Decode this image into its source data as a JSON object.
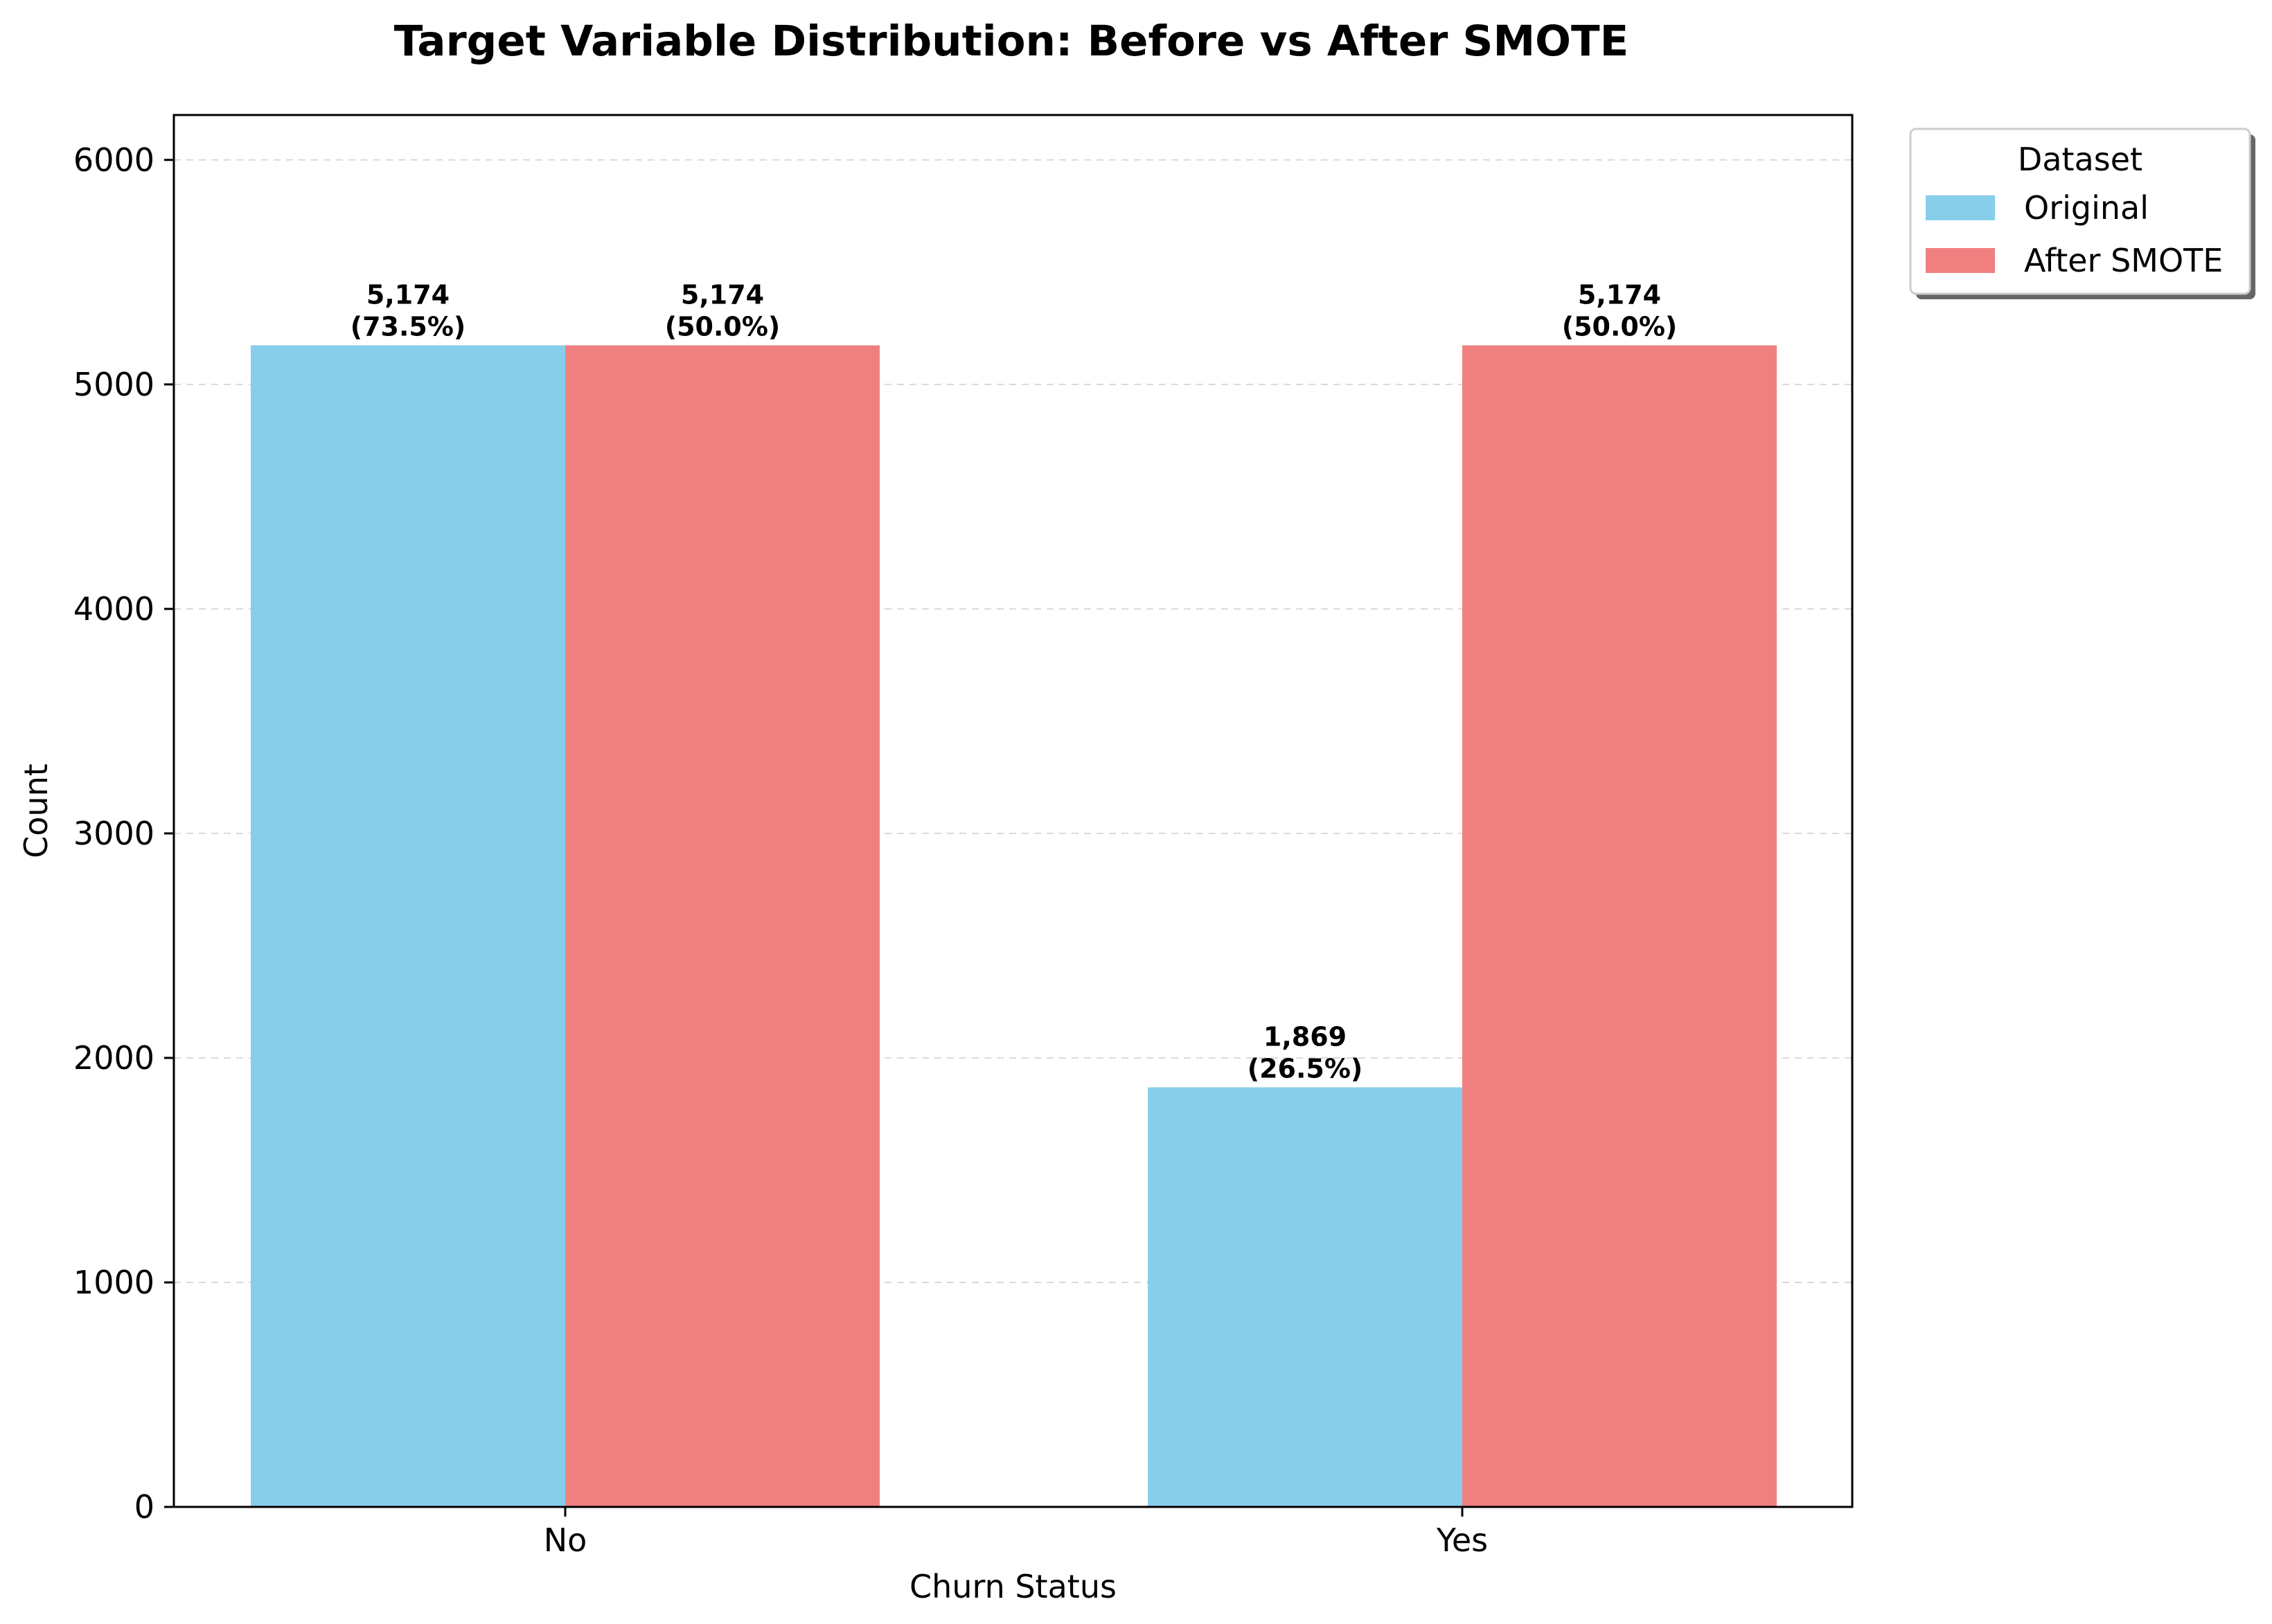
{
  "chart_data": {
    "type": "bar",
    "title": "Target Variable Distribution: Before vs After SMOTE",
    "xlabel": "Churn Status",
    "ylabel": "Count",
    "categories": [
      "No",
      "Yes"
    ],
    "series": [
      {
        "name": "Original",
        "values": [
          5174,
          1869
        ],
        "labels": [
          "5,174\n(73.5%)",
          "1,869\n(26.5%)"
        ],
        "color": "#87CEEB"
      },
      {
        "name": "After SMOTE",
        "values": [
          5174,
          5174
        ],
        "labels": [
          "5,174\n(50.0%)",
          "5,174\n(50.0%)"
        ],
        "color": "#F08080"
      }
    ],
    "ylim": [
      0,
      6200
    ],
    "yticks": [
      0,
      1000,
      2000,
      3000,
      4000,
      5000,
      6000
    ],
    "grid": "y-dashed",
    "legend": {
      "title": "Dataset",
      "placement": "outside-top-right"
    }
  }
}
